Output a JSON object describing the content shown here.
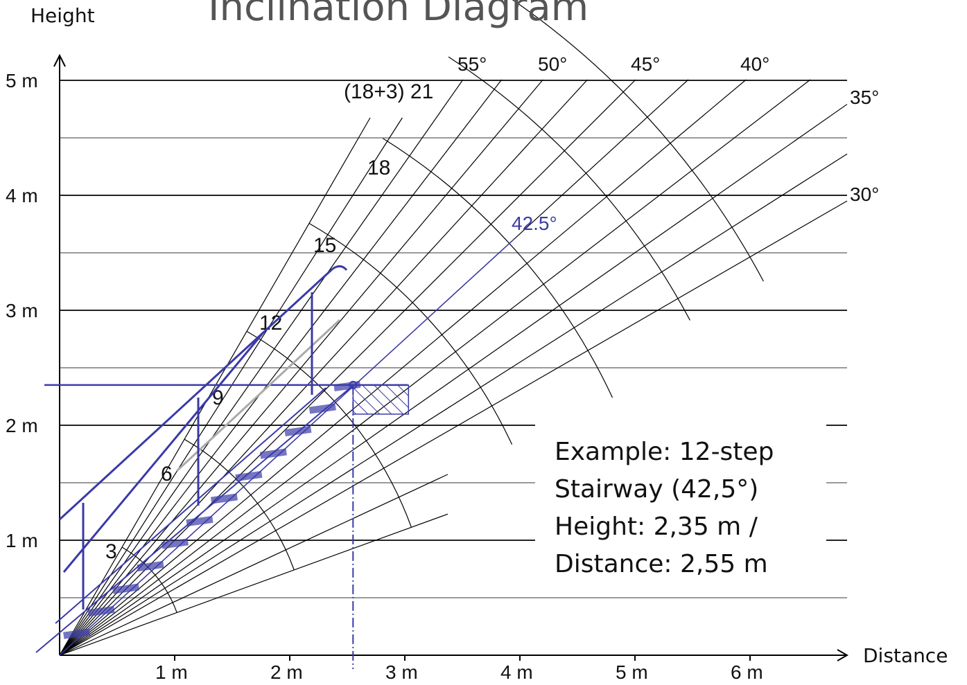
{
  "title": "Inclination Diagram",
  "axes": {
    "y_label": "Height",
    "x_label": "Distance"
  },
  "y_ticks": [
    "1 m",
    "2 m",
    "3 m",
    "4 m",
    "5 m"
  ],
  "x_ticks": [
    "1 m",
    "2 m",
    "3 m",
    "4 m",
    "5 m",
    "6 m"
  ],
  "angle_labels": [
    {
      "angle": 55,
      "label": "55°"
    },
    {
      "angle": 50,
      "label": "50°"
    },
    {
      "angle": 45,
      "label": "45°"
    },
    {
      "angle": 40,
      "label": "40°"
    },
    {
      "angle": 35,
      "label": "35°"
    },
    {
      "angle": 30,
      "label": "30°"
    }
  ],
  "highlight_angle": {
    "angle": 42.5,
    "label": "42.5°"
  },
  "step_labels": [
    "3",
    "6",
    "9",
    "12",
    "15",
    "18",
    "(18+3) 21"
  ],
  "example": {
    "lines": [
      "Example: 12-step",
      "Stairway (42,5°)",
      "Height: 2,35 m /",
      "Distance: 2,55 m"
    ],
    "height_m": 2.35,
    "distance_m": 2.55,
    "steps": 12
  },
  "colors": {
    "grid": "#000000",
    "stair": "#3a3aa8",
    "text": "#111111"
  }
}
